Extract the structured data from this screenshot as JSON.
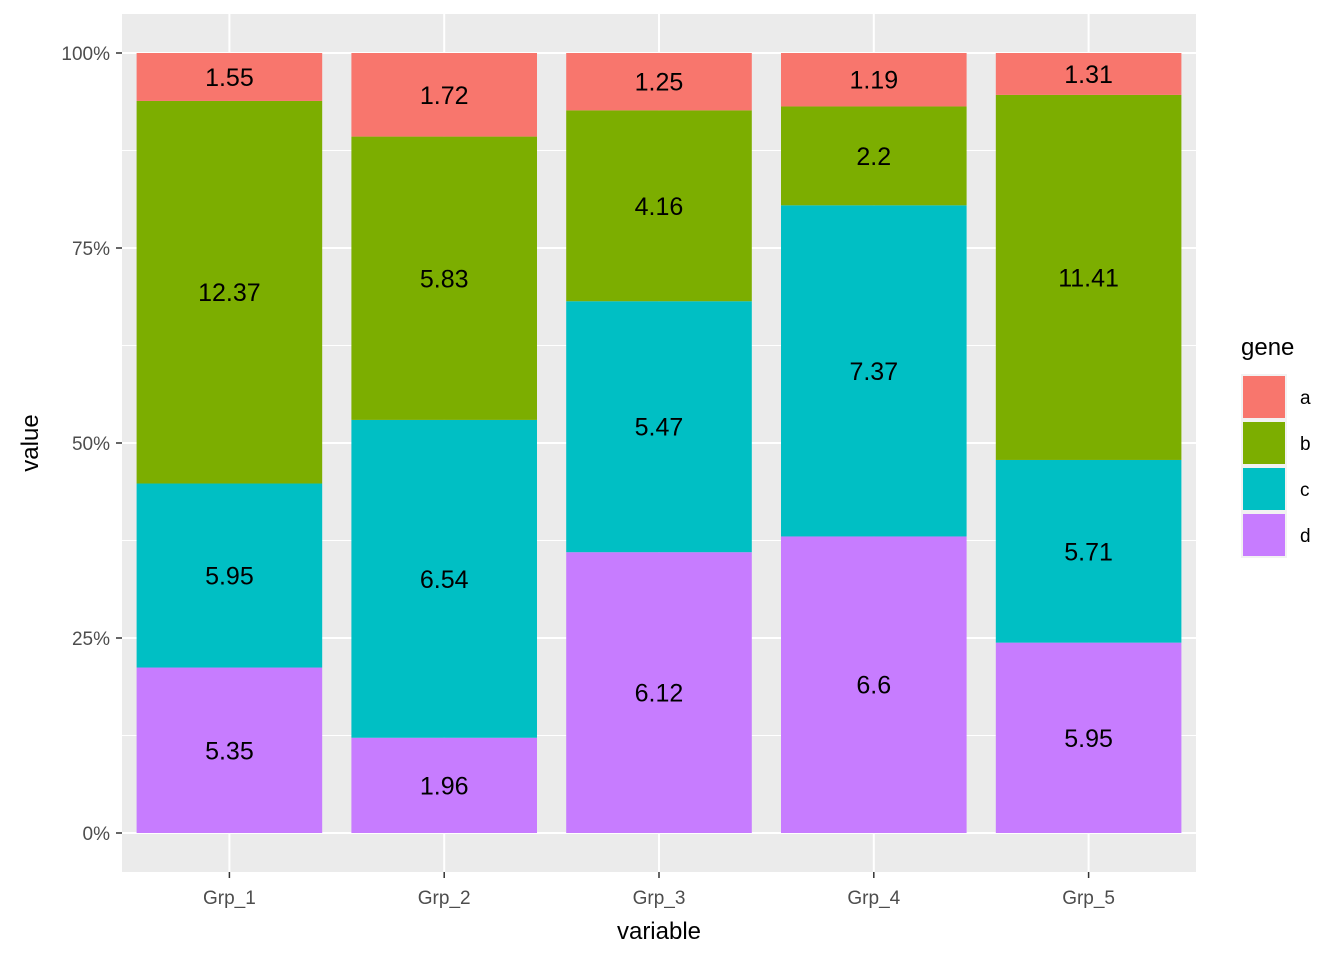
{
  "chart_data": {
    "type": "bar",
    "stacked": "percent",
    "categories": [
      "Grp_1",
      "Grp_2",
      "Grp_3",
      "Grp_4",
      "Grp_5"
    ],
    "series": [
      {
        "name": "a",
        "color": "#F8766D",
        "values": [
          1.55,
          1.72,
          1.25,
          1.19,
          1.31
        ]
      },
      {
        "name": "b",
        "color": "#7CAE00",
        "values": [
          12.37,
          5.83,
          4.16,
          2.2,
          11.41
        ]
      },
      {
        "name": "c",
        "color": "#00BFC4",
        "values": [
          5.95,
          6.54,
          5.47,
          7.37,
          5.71
        ]
      },
      {
        "name": "d",
        "color": "#C77CFF",
        "values": [
          5.35,
          1.96,
          6.12,
          6.6,
          5.95
        ]
      }
    ],
    "data_labels": [
      [
        "1.55",
        "1.72",
        "1.25",
        "1.19",
        "1.31"
      ],
      [
        "12.37",
        "5.83",
        "4.16",
        "2.2",
        "11.41"
      ],
      [
        "5.95",
        "6.54",
        "5.47",
        "7.37",
        "5.71"
      ],
      [
        "5.35",
        "1.96",
        "6.12",
        "6.6",
        "5.95"
      ]
    ],
    "xlabel": "variable",
    "ylabel": "value",
    "ylim": [
      0,
      1
    ],
    "yticks": [
      0,
      0.25,
      0.5,
      0.75,
      1
    ],
    "ytick_labels": [
      "0%",
      "25%",
      "50%",
      "75%",
      "100%"
    ],
    "legend": {
      "title": "gene",
      "position": "right"
    },
    "grid": true,
    "panel_background": "#EBEBEB",
    "grid_color": "#FFFFFF"
  }
}
